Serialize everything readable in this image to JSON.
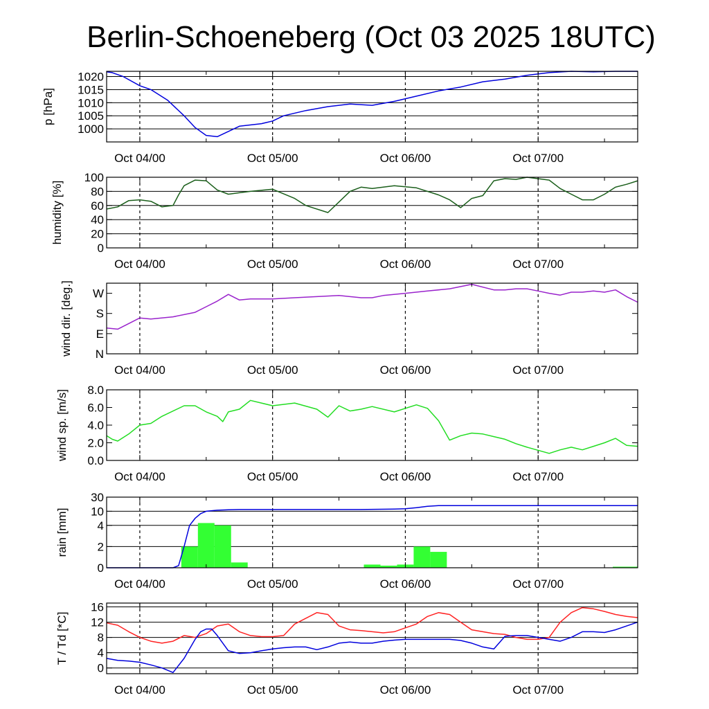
{
  "title": "Berlin-Schoeneberg (Oct 03 2025 18UTC)",
  "x_tick_labels": [
    "Oct 04/00",
    "Oct 05/00",
    "Oct 06/00",
    "Oct 07/00"
  ],
  "chart_data": [
    {
      "id": "pressure",
      "type": "line",
      "ylabel": "p [hPa]",
      "xlim": [
        0,
        96
      ],
      "ylim": [
        995,
        1022
      ],
      "yticks": [
        1000,
        1005,
        1010,
        1015,
        1020
      ],
      "ytick_labels": [
        "1000",
        "1005",
        "1010",
        "1015",
        "1020"
      ],
      "grid": true,
      "series": [
        {
          "color": "#0000dd",
          "x": [
            0,
            1,
            3,
            6,
            8,
            11,
            14,
            16,
            18,
            20,
            24,
            28,
            30,
            32,
            36,
            40,
            44,
            48,
            52,
            56,
            60,
            64,
            68,
            72,
            76,
            80,
            84,
            88,
            92,
            96
          ],
          "y": [
            1021.8,
            1021.5,
            1020,
            1016.5,
            1015,
            1011,
            1005,
            1000.5,
            997.5,
            997,
            1001,
            1002,
            1003,
            1005,
            1007,
            1008.5,
            1009.5,
            1009,
            1010.5,
            1012.5,
            1014.5,
            1016,
            1018,
            1019,
            1020.5,
            1021.5,
            1022,
            1021.8,
            1022,
            1022
          ]
        }
      ]
    },
    {
      "id": "humidity",
      "type": "line",
      "ylabel": "humidity [%]",
      "xlim": [
        0,
        96
      ],
      "ylim": [
        0,
        100
      ],
      "yticks": [
        0,
        20,
        40,
        60,
        80,
        100
      ],
      "ytick_labels": [
        "0",
        "20",
        "40",
        "60",
        "80",
        "100"
      ],
      "grid": true,
      "series": [
        {
          "color": "#1a5e1a",
          "x": [
            0,
            2,
            4,
            6,
            8,
            10,
            12,
            13,
            14,
            16,
            18,
            20,
            22,
            24,
            26,
            30,
            34,
            36,
            40,
            42,
            44,
            46,
            48,
            52,
            56,
            60,
            62,
            64,
            66,
            68,
            70,
            72,
            74,
            76,
            80,
            82,
            84,
            86,
            88,
            90,
            92,
            94,
            96
          ],
          "y": [
            55,
            58,
            67,
            68,
            66,
            58,
            60,
            75,
            88,
            96,
            95,
            82,
            76,
            78,
            80,
            83,
            70,
            60,
            50,
            65,
            80,
            86,
            84,
            88,
            85,
            75,
            68,
            57,
            70,
            74,
            95,
            98,
            97,
            100,
            96,
            84,
            76,
            68,
            68,
            76,
            86,
            90,
            95
          ]
        }
      ]
    },
    {
      "id": "wind_direction",
      "type": "line",
      "ylabel": "wind dir. [deg.]",
      "xlim": [
        0,
        96
      ],
      "ylim": [
        0,
        315
      ],
      "yticks": [
        0,
        90,
        180,
        270
      ],
      "ytick_labels": [
        "N",
        "E",
        "S",
        "W"
      ],
      "grid": false,
      "series": [
        {
          "color": "#9922cc",
          "x": [
            0,
            2,
            4,
            6,
            8,
            12,
            16,
            18,
            20,
            22,
            24,
            26,
            30,
            34,
            38,
            42,
            46,
            48,
            50,
            54,
            58,
            62,
            66,
            70,
            72,
            74,
            76,
            78,
            80,
            82,
            84,
            86,
            88,
            90,
            92,
            94,
            96
          ],
          "y": [
            115,
            110,
            135,
            160,
            155,
            165,
            185,
            210,
            235,
            265,
            240,
            245,
            245,
            250,
            255,
            260,
            250,
            250,
            260,
            270,
            280,
            290,
            310,
            285,
            285,
            290,
            290,
            280,
            270,
            262,
            275,
            275,
            280,
            275,
            285,
            255,
            230
          ]
        }
      ]
    },
    {
      "id": "wind_speed",
      "type": "line",
      "ylabel": "wind sp. [m/s]",
      "xlim": [
        0,
        96
      ],
      "ylim": [
        0,
        8
      ],
      "yticks": [
        0,
        2,
        4,
        6,
        8
      ],
      "ytick_labels": [
        "0.0",
        "2.0",
        "4.0",
        "6.0",
        "8.0"
      ],
      "grid": false,
      "series": [
        {
          "color": "#22dd22",
          "x": [
            0,
            1,
            2,
            4,
            6,
            8,
            10,
            14,
            16,
            18,
            20,
            21,
            22,
            24,
            26,
            30,
            34,
            38,
            40,
            42,
            44,
            46,
            48,
            52,
            56,
            58,
            60,
            62,
            64,
            66,
            68,
            70,
            72,
            74,
            76,
            80,
            82,
            84,
            86,
            88,
            90,
            92,
            94,
            96
          ],
          "y": [
            2.8,
            2.4,
            2.2,
            3.0,
            4.0,
            4.2,
            5.0,
            6.2,
            6.2,
            5.5,
            5.0,
            4.4,
            5.5,
            5.8,
            6.8,
            6.2,
            6.5,
            5.8,
            4.9,
            6.2,
            5.6,
            5.8,
            6.1,
            5.5,
            6.3,
            5.9,
            4.5,
            2.3,
            2.8,
            3.1,
            3.0,
            2.7,
            2.4,
            1.9,
            1.5,
            0.8,
            1.2,
            1.5,
            1.2,
            1.6,
            2.0,
            2.5,
            1.7,
            1.6
          ]
        }
      ]
    },
    {
      "id": "rain",
      "type": "bar",
      "ylabel": "rain [mm]",
      "xlim": [
        0,
        96
      ],
      "ylim": [
        0,
        30
      ],
      "scale": "nonlinear",
      "yticks": [
        0,
        2,
        4,
        10,
        30
      ],
      "ytick_labels": [
        "0",
        "2",
        "4",
        "10",
        "30"
      ],
      "grid": true,
      "bars": {
        "color": "#33ff33",
        "bins": [
          {
            "x0": 13.5,
            "x1": 16.5,
            "value": 2.0
          },
          {
            "x0": 16.5,
            "x1": 19.5,
            "value": 5.0
          },
          {
            "x0": 19.5,
            "x1": 22.5,
            "value": 4.0
          },
          {
            "x0": 22.5,
            "x1": 25.5,
            "value": 0.5
          },
          {
            "x0": 46.5,
            "x1": 49.5,
            "value": 0.3
          },
          {
            "x0": 49.5,
            "x1": 52.5,
            "value": 0.2
          },
          {
            "x0": 52.5,
            "x1": 55.5,
            "value": 0.3
          },
          {
            "x0": 55.5,
            "x1": 58.5,
            "value": 2.0
          },
          {
            "x0": 58.5,
            "x1": 61.5,
            "value": 1.5
          },
          {
            "x0": 91.5,
            "x1": 96.0,
            "value": 0.1
          }
        ]
      },
      "series": [
        {
          "color": "#0000dd",
          "x": [
            0,
            12,
            13,
            14,
            15,
            16,
            17,
            18,
            20,
            22,
            24,
            28,
            34,
            40,
            46,
            52,
            54,
            56,
            58,
            60,
            62,
            66,
            72,
            78,
            84,
            90,
            96
          ],
          "y": [
            0,
            0,
            0.2,
            2,
            4,
            7,
            9,
            10,
            11.5,
            12.2,
            12.5,
            12.5,
            12.5,
            12.5,
            12.5,
            13,
            13.5,
            15,
            17,
            18,
            18,
            18,
            18,
            18,
            18,
            18,
            18
          ]
        }
      ]
    },
    {
      "id": "temperature",
      "type": "line",
      "ylabel": "T / Td [*C]",
      "xlim": [
        0,
        96
      ],
      "ylim": [
        -1.5,
        17
      ],
      "yticks": [
        0,
        4,
        8,
        12,
        16
      ],
      "ytick_labels": [
        "0",
        "4",
        "8",
        "12",
        "16"
      ],
      "grid": true,
      "series": [
        {
          "color": "#ff2222",
          "x": [
            0,
            2,
            4,
            6,
            8,
            10,
            12,
            14,
            16,
            18,
            20,
            22,
            24,
            26,
            28,
            30,
            32,
            34,
            36,
            38,
            40,
            42,
            44,
            46,
            48,
            50,
            52,
            54,
            56,
            58,
            60,
            62,
            64,
            66,
            68,
            70,
            72,
            74,
            76,
            78,
            80,
            82,
            84,
            86,
            88,
            90,
            92,
            94,
            96
          ],
          "y": [
            11.8,
            11.2,
            9.5,
            8.0,
            7.0,
            6.5,
            7.0,
            8.5,
            8.0,
            9.0,
            11.0,
            11.5,
            9.5,
            8.5,
            8.2,
            8.2,
            8.5,
            11.5,
            13.0,
            14.5,
            14.0,
            11.0,
            10.0,
            9.8,
            9.5,
            9.2,
            9.5,
            10.5,
            11.5,
            13.5,
            14.5,
            14.0,
            12.0,
            10.0,
            9.5,
            9.0,
            8.8,
            8.0,
            7.5,
            7.5,
            8.0,
            12.0,
            14.5,
            15.8,
            15.5,
            14.8,
            14.0,
            13.5,
            13.2
          ]
        },
        {
          "color": "#0000dd",
          "x": [
            0,
            2,
            4,
            6,
            8,
            10,
            12,
            14,
            16,
            17,
            18,
            19,
            20,
            22,
            24,
            26,
            28,
            30,
            32,
            34,
            36,
            38,
            40,
            42,
            44,
            46,
            48,
            50,
            52,
            54,
            56,
            58,
            60,
            62,
            64,
            66,
            68,
            70,
            72,
            74,
            76,
            78,
            80,
            82,
            84,
            86,
            88,
            90,
            92,
            94,
            96
          ],
          "y": [
            2.5,
            2.0,
            1.8,
            1.5,
            0.8,
            0,
            -1.2,
            2.5,
            7.5,
            9.5,
            10.2,
            10.2,
            8.5,
            4.5,
            3.8,
            4.0,
            4.5,
            5.0,
            5.3,
            5.5,
            5.5,
            4.8,
            5.5,
            6.5,
            6.8,
            6.5,
            6.5,
            7.0,
            7.3,
            7.5,
            7.5,
            7.5,
            7.5,
            7.5,
            7.2,
            6.5,
            5.5,
            5.0,
            8.3,
            8.5,
            8.5,
            8.0,
            7.5,
            7.0,
            8.0,
            9.5,
            9.5,
            9.3,
            10.0,
            11.0,
            12.0
          ]
        }
      ]
    }
  ]
}
